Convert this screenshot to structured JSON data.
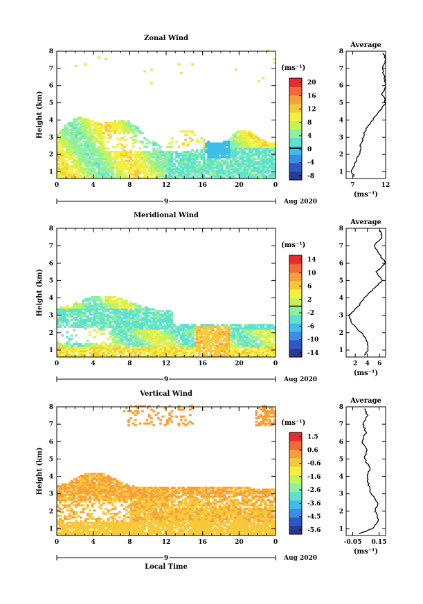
{
  "chart_data": [
    {
      "type": "heatmap",
      "title": "Zonal Wind",
      "ylabel": "Height (km)",
      "xticks": [
        "0",
        "4",
        "8",
        "12",
        "16",
        "20",
        "0"
      ],
      "xlim": [
        0,
        24
      ],
      "yticks": [
        "1",
        "2",
        "3",
        "4",
        "5",
        "6",
        "7",
        "8"
      ],
      "ylim": [
        0.6,
        8.0
      ],
      "date_day": "9",
      "date_month": "Aug 2020",
      "colorbar": {
        "unit": "(ms⁻¹)",
        "ticks": [
          "20",
          "16",
          "12",
          "8",
          "4",
          "0",
          "-4",
          "-8"
        ],
        "range": [
          -10,
          22
        ],
        "zero_line": 0
      },
      "average": {
        "title": "Average",
        "xticks": [
          "7",
          "12"
        ],
        "xlim": [
          6,
          12
        ],
        "xlabel": "(ms⁻¹)",
        "y": [
          0.7,
          1.0,
          1.5,
          2.0,
          2.5,
          3.0,
          3.5,
          4.0,
          4.5,
          5.0,
          5.5,
          6.0,
          6.5,
          7.0,
          7.5,
          7.9
        ],
        "x": [
          7.2,
          6.8,
          7.3,
          8.0,
          8.2,
          8.6,
          9.0,
          10.0,
          11.0,
          12.0,
          11.5,
          12.0,
          11.8,
          11.5,
          12.0,
          11.6
        ]
      }
    },
    {
      "type": "heatmap",
      "title": "Meridional Wind",
      "ylabel": "Height (km)",
      "xticks": [
        "0",
        "4",
        "8",
        "12",
        "16",
        "20",
        "0"
      ],
      "xlim": [
        0,
        24
      ],
      "yticks": [
        "1",
        "2",
        "3",
        "4",
        "5",
        "6",
        "7",
        "8"
      ],
      "ylim": [
        0.6,
        8.0
      ],
      "date_day": "9",
      "date_month": "Aug 2020",
      "colorbar": {
        "unit": "(ms⁻¹)",
        "ticks": [
          "14",
          "10",
          "6",
          "2",
          "-2",
          "-6",
          "-10",
          "-14"
        ],
        "range": [
          -16,
          16
        ],
        "zero_line": 0
      },
      "average": {
        "title": "Average",
        "xticks": [
          "2",
          "4",
          "6"
        ],
        "xlim": [
          0.5,
          7
        ],
        "xlabel": "(ms⁻¹)",
        "y": [
          0.7,
          1.0,
          1.5,
          2.0,
          2.5,
          3.0,
          3.5,
          4.0,
          4.5,
          5.0,
          5.5,
          6.0,
          6.5,
          7.0,
          7.5,
          7.9
        ],
        "x": [
          3.5,
          4.2,
          4.0,
          3.0,
          1.5,
          1.0,
          2.5,
          3.5,
          5.0,
          6.5,
          5.5,
          7.0,
          6.0,
          5.0,
          6.5,
          6.0
        ]
      }
    },
    {
      "type": "heatmap",
      "title": "Vertical Wind",
      "ylabel": "Height (km)",
      "xlabel": "Local Time",
      "xticks": [
        "0",
        "4",
        "8",
        "12",
        "16",
        "20",
        "0"
      ],
      "xlim": [
        0,
        24
      ],
      "yticks": [
        "1",
        "2",
        "3",
        "4",
        "5",
        "6",
        "7",
        "8"
      ],
      "ylim": [
        0.6,
        8.0
      ],
      "date_day": "9",
      "date_month": "Aug 2020",
      "colorbar": {
        "unit": "(ms⁻¹)",
        "ticks": [
          "1.5",
          "0.6",
          "-0.6",
          "-1.6",
          "-2.6",
          "-3.6",
          "-4.5",
          "-5.6"
        ],
        "range": [
          -6,
          2
        ]
      },
      "average": {
        "title": "Average",
        "xticks": [
          "-0.05",
          "0.15"
        ],
        "xlim": [
          -0.1,
          0.2
        ],
        "xlabel": "(ms⁻¹)",
        "y": [
          0.7,
          1.0,
          1.5,
          2.0,
          2.5,
          3.0,
          3.5,
          4.0,
          4.5,
          5.0,
          5.5,
          6.0,
          6.5,
          7.0,
          7.5,
          7.9
        ],
        "x": [
          0.0,
          0.1,
          0.15,
          0.12,
          0.14,
          0.09,
          0.07,
          0.06,
          0.08,
          0.04,
          0.06,
          0.02,
          0.05,
          0.03,
          0.06,
          0.04
        ]
      }
    }
  ],
  "colors": {
    "scale": [
      "#2b3990",
      "#2e56c4",
      "#3a8ee8",
      "#3fbde8",
      "#5fe0d0",
      "#8ff0a0",
      "#c6f25a",
      "#f2f03a",
      "#f7c83a",
      "#f7a03a",
      "#f36a3a",
      "#e52d2d"
    ]
  }
}
